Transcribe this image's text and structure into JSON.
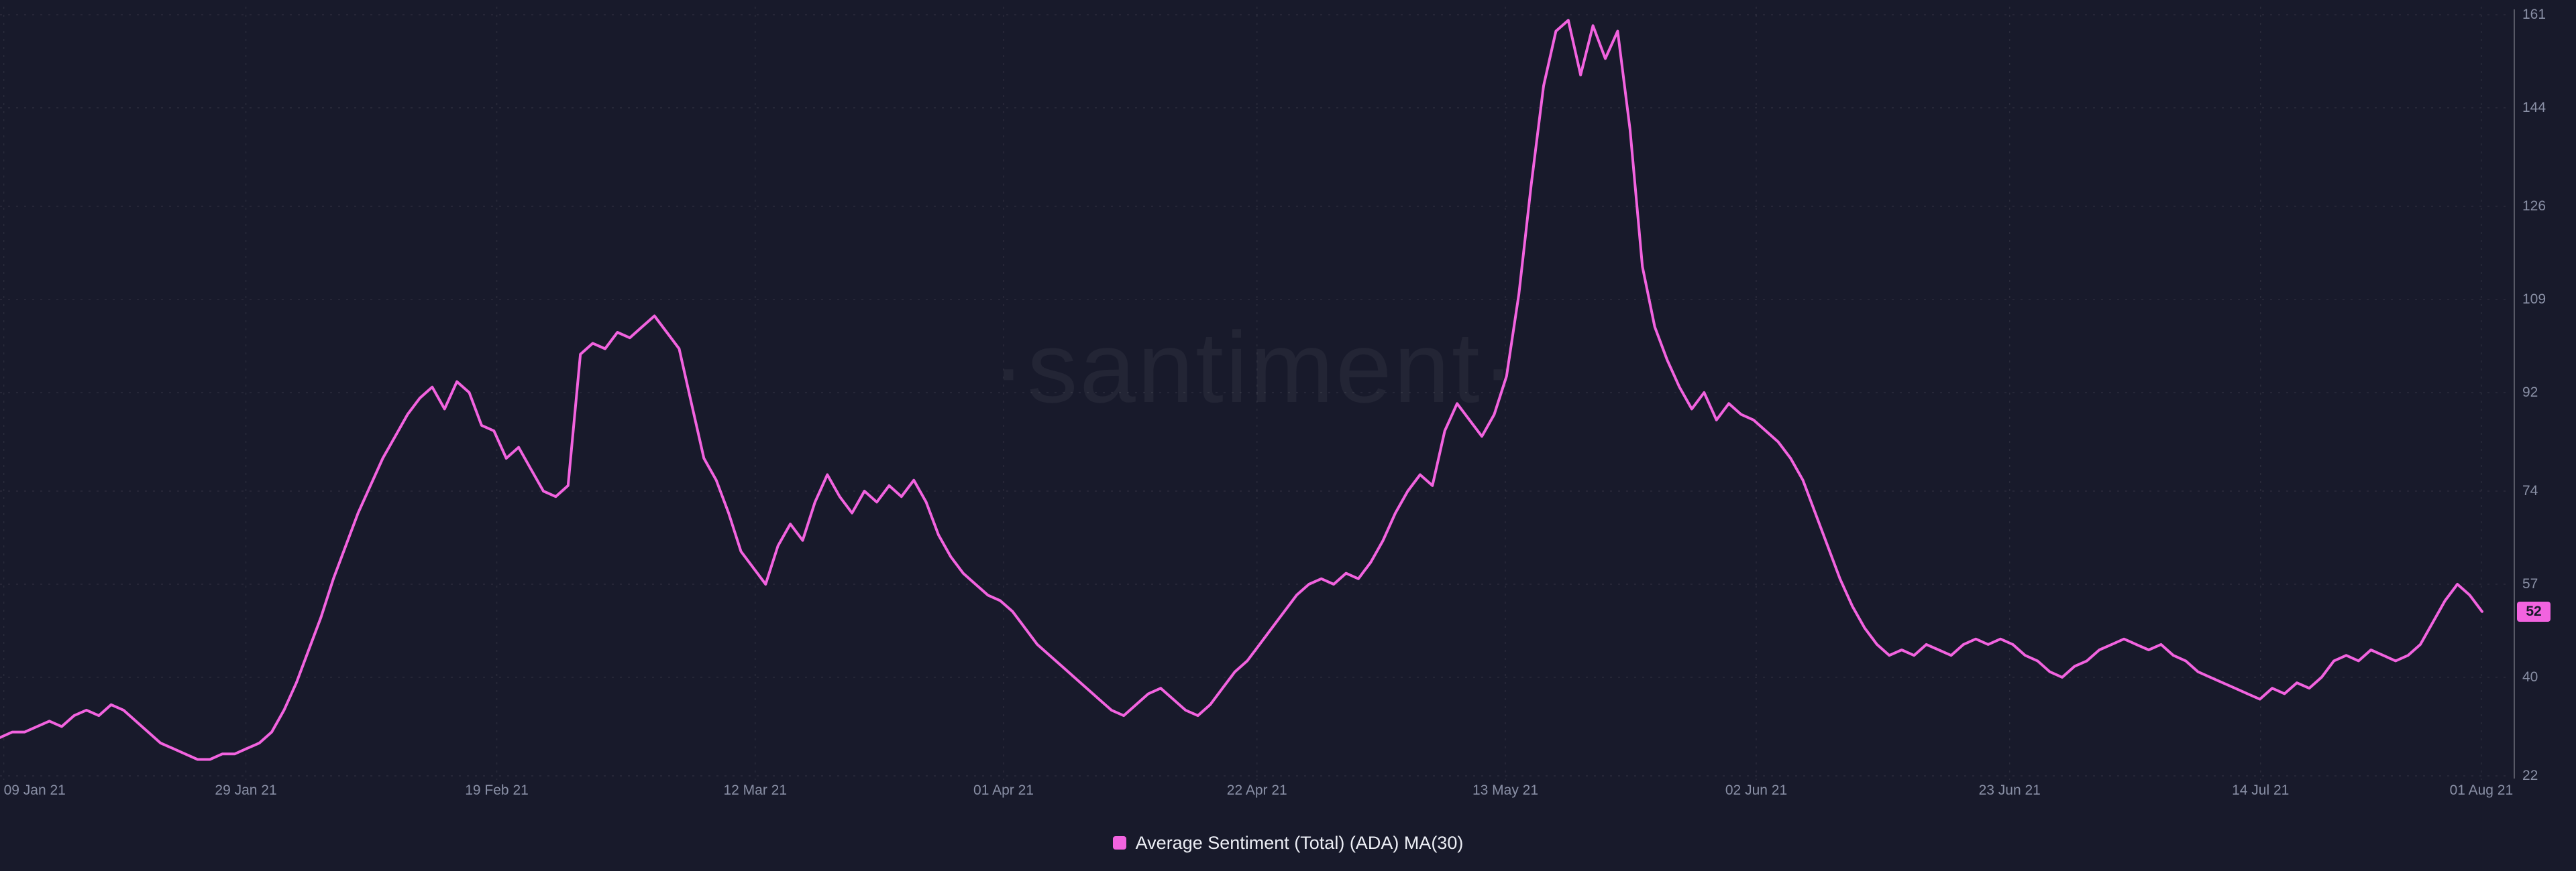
{
  "app": {
    "colors": {
      "background": "#181a2b",
      "accent": "#f263df",
      "axis_text": "#8a90a6"
    }
  },
  "watermark": "·santiment·",
  "chart_data": {
    "type": "line",
    "title": "Average Sentiment (Total) (ADA) MA(30)",
    "xlabel": "",
    "ylabel": "",
    "ylim": [
      22,
      161
    ],
    "y_ticks": [
      161,
      144,
      126,
      109,
      92,
      74,
      57,
      40,
      22
    ],
    "x_ticks": [
      {
        "label": "09 Jan 21",
        "pos": 0.15
      },
      {
        "label": "29 Jan 21",
        "pos": 9.8
      },
      {
        "label": "19 Feb 21",
        "pos": 19.8
      },
      {
        "label": "12 Mar 21",
        "pos": 30.1
      },
      {
        "label": "01 Apr 21",
        "pos": 40.0
      },
      {
        "label": "22 Apr 21",
        "pos": 50.1
      },
      {
        "label": "13 May 21",
        "pos": 60.0
      },
      {
        "label": "02 Jun 21",
        "pos": 70.0
      },
      {
        "label": "23 Jun 21",
        "pos": 80.1
      },
      {
        "label": "14 Jul 21",
        "pos": 90.1
      },
      {
        "label": "01 Aug 21",
        "pos": 98.9
      }
    ],
    "x_range": [
      "09 Jan 21",
      "01 Aug 21"
    ],
    "grid": "dashed",
    "legend_position": "bottom-center",
    "current_value": 52,
    "series": [
      {
        "name": "Average Sentiment (Total) (ADA) MA(30)",
        "color": "#f263df",
        "values": [
          29,
          30,
          30,
          31,
          32,
          31,
          33,
          34,
          33,
          35,
          34,
          32,
          30,
          28,
          27,
          26,
          25,
          25,
          26,
          26,
          27,
          28,
          30,
          34,
          39,
          45,
          51,
          58,
          64,
          70,
          75,
          80,
          84,
          88,
          91,
          93,
          89,
          94,
          92,
          86,
          85,
          80,
          82,
          78,
          74,
          73,
          75,
          99,
          101,
          100,
          103,
          102,
          104,
          106,
          103,
          100,
          90,
          80,
          76,
          70,
          63,
          60,
          57,
          64,
          68,
          65,
          72,
          77,
          73,
          70,
          74,
          72,
          75,
          73,
          76,
          72,
          66,
          62,
          59,
          57,
          55,
          54,
          52,
          49,
          46,
          44,
          42,
          40,
          38,
          36,
          34,
          33,
          35,
          37,
          38,
          36,
          34,
          33,
          35,
          38,
          41,
          43,
          46,
          49,
          52,
          55,
          57,
          58,
          57,
          59,
          58,
          61,
          65,
          70,
          74,
          77,
          75,
          85,
          90,
          87,
          84,
          88,
          95,
          110,
          130,
          148,
          158,
          160,
          150,
          159,
          153,
          158,
          140,
          115,
          104,
          98,
          93,
          89,
          92,
          87,
          90,
          88,
          87,
          85,
          83,
          80,
          76,
          70,
          64,
          58,
          53,
          49,
          46,
          44,
          45,
          44,
          46,
          45,
          44,
          46,
          47,
          46,
          47,
          46,
          44,
          43,
          41,
          40,
          42,
          43,
          45,
          46,
          47,
          46,
          45,
          46,
          44,
          43,
          41,
          40,
          39,
          38,
          37,
          36,
          38,
          37,
          39,
          38,
          40,
          43,
          44,
          43,
          45,
          44,
          43,
          44,
          46,
          50,
          54,
          57,
          55,
          52
        ]
      }
    ]
  }
}
